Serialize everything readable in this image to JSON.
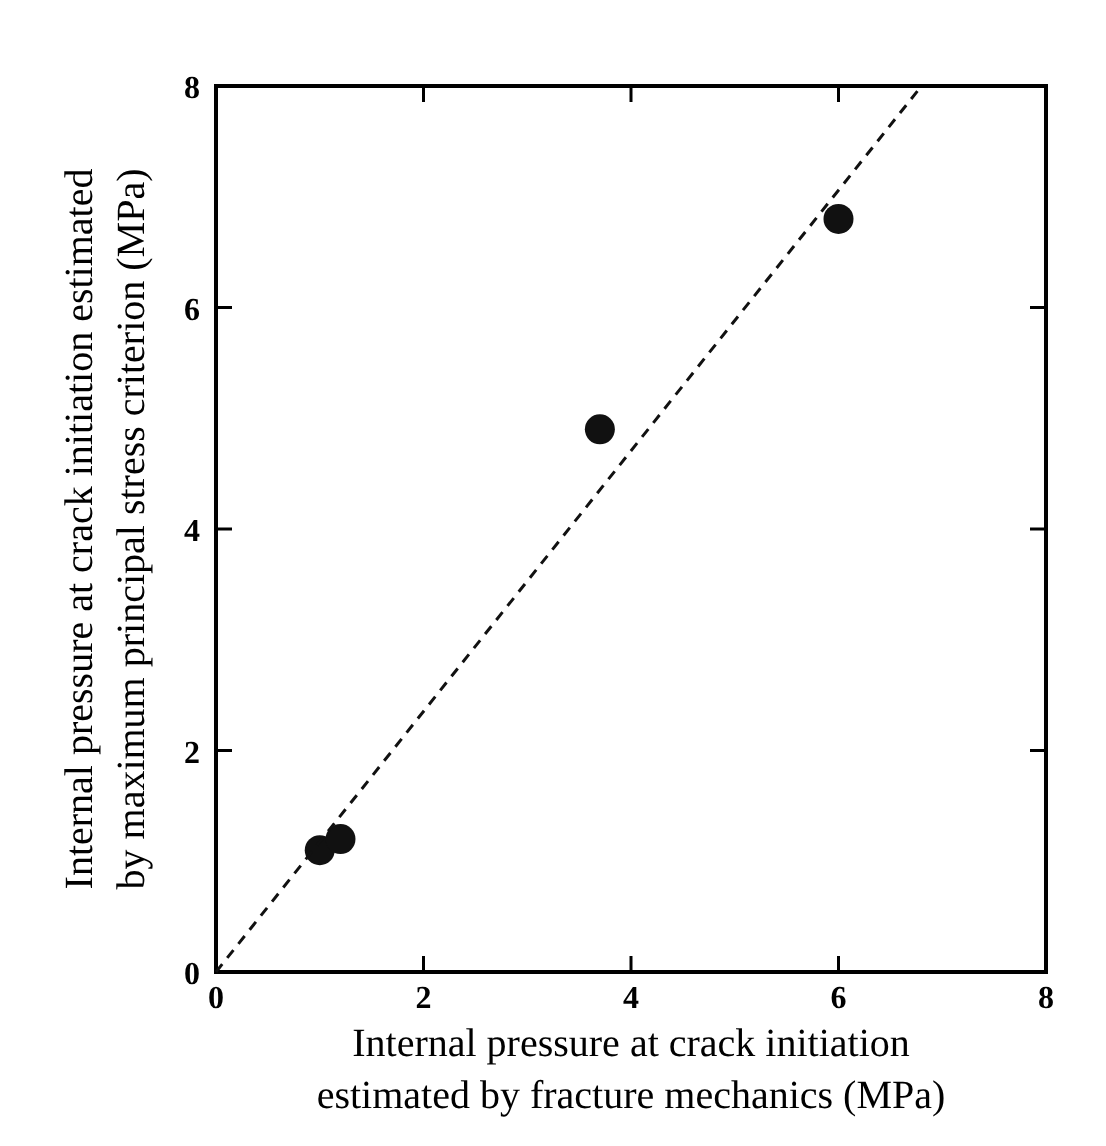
{
  "chart_data": {
    "type": "scatter",
    "xlabel": "Internal pressure at crack initiation\nestimated by fracture mechanics (MPa)",
    "ylabel": "Internal pressure at crack initiation estimated\nby maximum principal stress criterion (MPa)",
    "x": [
      1.0,
      1.2,
      3.7,
      6.0
    ],
    "series": [
      {
        "color": "#111111",
        "values": [
          1.1,
          1.2,
          4.9,
          6.8
        ],
        "marker": "circle"
      },
      {
        "type": "line",
        "color": "#111111",
        "x": [
          0,
          6.8
        ],
        "values": [
          0,
          8
        ],
        "line_style": "dashed",
        "marker": "none"
      }
    ],
    "xlim": [
      0,
      8
    ],
    "ylim": [
      0,
      8
    ],
    "xticks": [
      0,
      2,
      4,
      6,
      8
    ],
    "yticks": [
      0,
      2,
      4,
      6,
      8
    ],
    "grid": false
  }
}
